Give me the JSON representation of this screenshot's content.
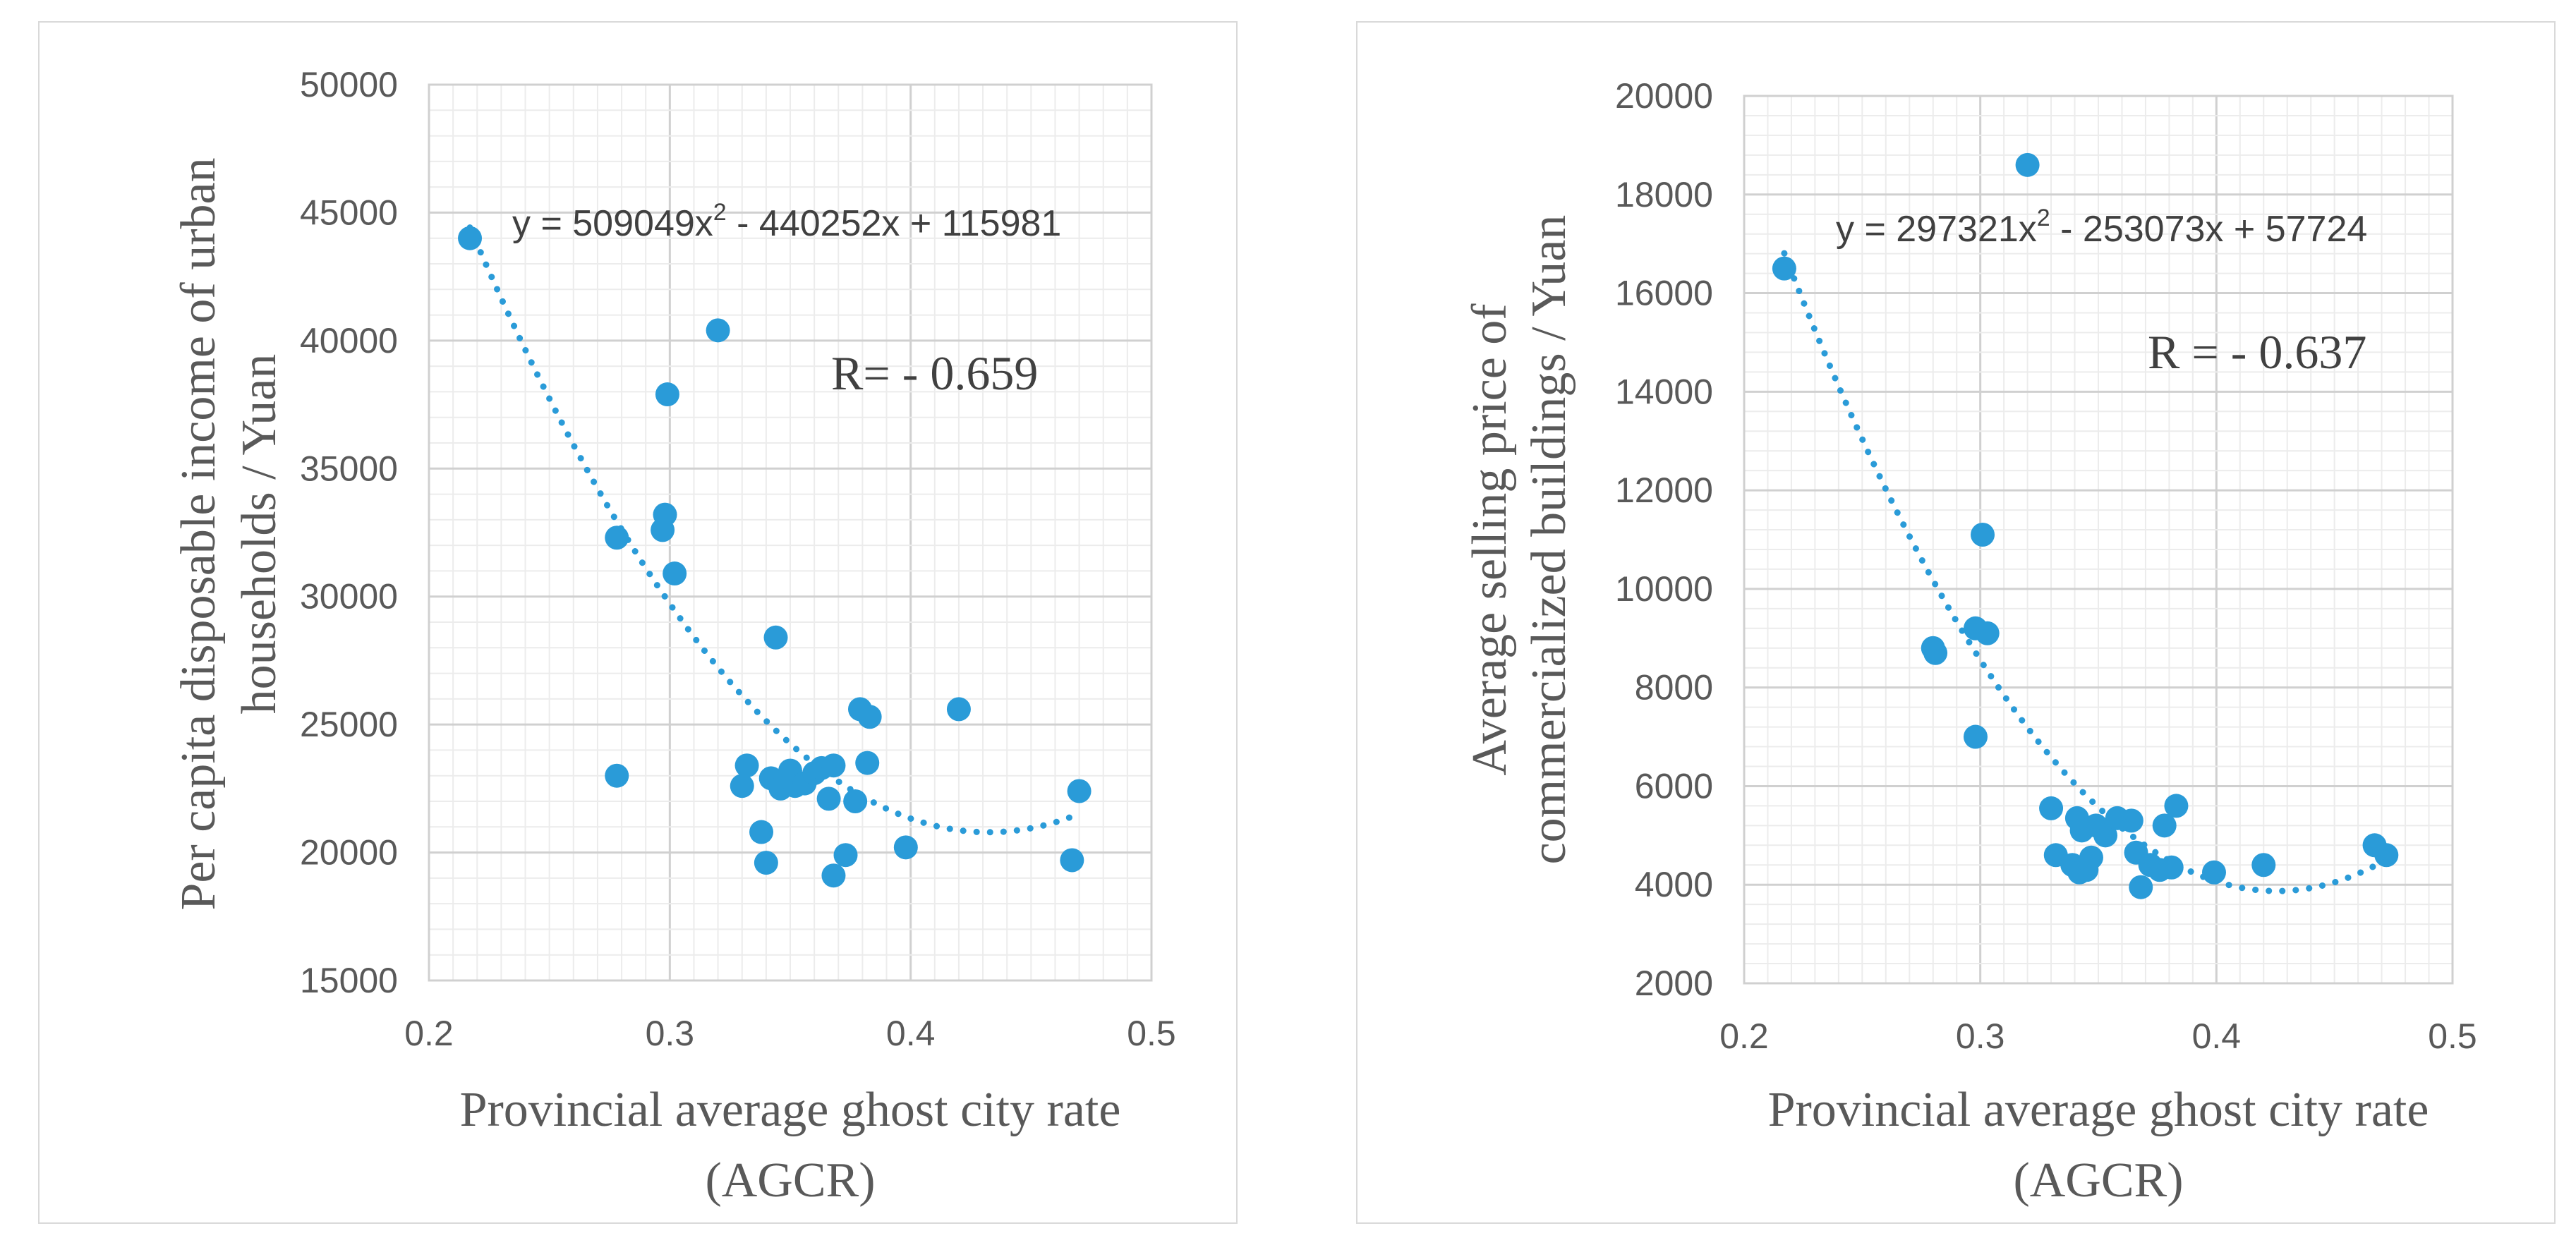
{
  "chart_data": [
    {
      "type": "scatter",
      "title": "",
      "xlabel": "Provincial average ghost city rate (AGCR)",
      "xlabel_lines": [
        "Provincial average ghost city rate",
        "(AGCR)"
      ],
      "ylabel": "Per capita disposable income of urban households / Yuan",
      "ylabel_lines": [
        "Per capita disposable income of urban",
        "households / Yuan"
      ],
      "xlim": [
        0.2,
        0.5
      ],
      "ylim": [
        15000,
        50000
      ],
      "x_ticks": [
        0.2,
        0.3,
        0.4,
        0.5
      ],
      "x_tick_labels": [
        "0.2",
        "0.3",
        "0.4",
        "0.5"
      ],
      "y_ticks": [
        15000,
        20000,
        25000,
        30000,
        35000,
        40000,
        45000,
        50000
      ],
      "y_tick_labels": [
        "15000",
        "20000",
        "25000",
        "30000",
        "35000",
        "40000",
        "45000",
        "50000"
      ],
      "grid": true,
      "color": "#2a9bd8",
      "trendline": {
        "type": "polynomial",
        "order": 2,
        "coefficients": [
          509049,
          -440252,
          115981
        ],
        "x_range": [
          0.217,
          0.47
        ]
      },
      "equation_prefix": "y = 509049x",
      "equation_sup": "2",
      "equation_suffix": "  - 440252x  + 115981",
      "r_label": "R= - 0.659",
      "points": [
        {
          "x": 0.217,
          "y": 44000
        },
        {
          "x": 0.278,
          "y": 32300
        },
        {
          "x": 0.278,
          "y": 23000
        },
        {
          "x": 0.297,
          "y": 32600
        },
        {
          "x": 0.298,
          "y": 33200
        },
        {
          "x": 0.299,
          "y": 37900
        },
        {
          "x": 0.302,
          "y": 30900
        },
        {
          "x": 0.32,
          "y": 40400
        },
        {
          "x": 0.33,
          "y": 22600
        },
        {
          "x": 0.332,
          "y": 23400
        },
        {
          "x": 0.338,
          "y": 20800
        },
        {
          "x": 0.34,
          "y": 19600
        },
        {
          "x": 0.342,
          "y": 22900
        },
        {
          "x": 0.344,
          "y": 28400
        },
        {
          "x": 0.346,
          "y": 22500
        },
        {
          "x": 0.348,
          "y": 22800
        },
        {
          "x": 0.35,
          "y": 23200
        },
        {
          "x": 0.352,
          "y": 22600
        },
        {
          "x": 0.356,
          "y": 22700
        },
        {
          "x": 0.36,
          "y": 23100
        },
        {
          "x": 0.363,
          "y": 23300
        },
        {
          "x": 0.366,
          "y": 22100
        },
        {
          "x": 0.368,
          "y": 23400
        },
        {
          "x": 0.368,
          "y": 19100
        },
        {
          "x": 0.373,
          "y": 19900
        },
        {
          "x": 0.377,
          "y": 22000
        },
        {
          "x": 0.379,
          "y": 25600
        },
        {
          "x": 0.382,
          "y": 23500
        },
        {
          "x": 0.383,
          "y": 25300
        },
        {
          "x": 0.398,
          "y": 20200
        },
        {
          "x": 0.42,
          "y": 25600
        },
        {
          "x": 0.467,
          "y": 19700
        },
        {
          "x": 0.47,
          "y": 22400
        }
      ]
    },
    {
      "type": "scatter",
      "title": "",
      "xlabel": "Provincial average ghost city rate (AGCR)",
      "xlabel_lines": [
        "Provincial average ghost city rate",
        "(AGCR)"
      ],
      "ylabel": "Average selling price of commercialized buildings / Yuan",
      "ylabel_lines": [
        "Average selling price of",
        "commercialized buildings / Yuan"
      ],
      "xlim": [
        0.2,
        0.5
      ],
      "ylim": [
        2000,
        20000
      ],
      "x_ticks": [
        0.2,
        0.3,
        0.4,
        0.5
      ],
      "x_tick_labels": [
        "0.2",
        "0.3",
        "0.4",
        "0.5"
      ],
      "y_ticks": [
        2000,
        4000,
        6000,
        8000,
        10000,
        12000,
        14000,
        16000,
        18000,
        20000
      ],
      "y_tick_labels": [
        "2000",
        "4000",
        "6000",
        "8000",
        "10000",
        "12000",
        "14000",
        "16000",
        "18000",
        "20000"
      ],
      "grid": true,
      "color": "#2a9bd8",
      "trendline": {
        "type": "polynomial",
        "order": 2,
        "coefficients": [
          297321,
          -253073,
          57724
        ],
        "x_range": [
          0.217,
          0.47
        ]
      },
      "equation_prefix": "y = 297321x",
      "equation_sup": "2",
      "equation_suffix": "  - 253073x  + 57724",
      "r_label": "R = - 0.637",
      "points": [
        {
          "x": 0.217,
          "y": 16500
        },
        {
          "x": 0.28,
          "y": 8800
        },
        {
          "x": 0.281,
          "y": 8700
        },
        {
          "x": 0.298,
          "y": 9200
        },
        {
          "x": 0.298,
          "y": 7000
        },
        {
          "x": 0.301,
          "y": 11100
        },
        {
          "x": 0.303,
          "y": 9100
        },
        {
          "x": 0.32,
          "y": 18600
        },
        {
          "x": 0.33,
          "y": 5550
        },
        {
          "x": 0.332,
          "y": 4600
        },
        {
          "x": 0.339,
          "y": 4400
        },
        {
          "x": 0.341,
          "y": 5350
        },
        {
          "x": 0.342,
          "y": 4250
        },
        {
          "x": 0.343,
          "y": 5100
        },
        {
          "x": 0.345,
          "y": 4300
        },
        {
          "x": 0.347,
          "y": 4550
        },
        {
          "x": 0.349,
          "y": 5200
        },
        {
          "x": 0.353,
          "y": 5000
        },
        {
          "x": 0.358,
          "y": 5350
        },
        {
          "x": 0.364,
          "y": 5300
        },
        {
          "x": 0.366,
          "y": 4650
        },
        {
          "x": 0.368,
          "y": 3950
        },
        {
          "x": 0.372,
          "y": 4400
        },
        {
          "x": 0.376,
          "y": 4300
        },
        {
          "x": 0.378,
          "y": 5200
        },
        {
          "x": 0.381,
          "y": 4350
        },
        {
          "x": 0.383,
          "y": 5600
        },
        {
          "x": 0.399,
          "y": 4250
        },
        {
          "x": 0.42,
          "y": 4400
        },
        {
          "x": 0.467,
          "y": 4800
        },
        {
          "x": 0.472,
          "y": 4600
        }
      ]
    }
  ]
}
